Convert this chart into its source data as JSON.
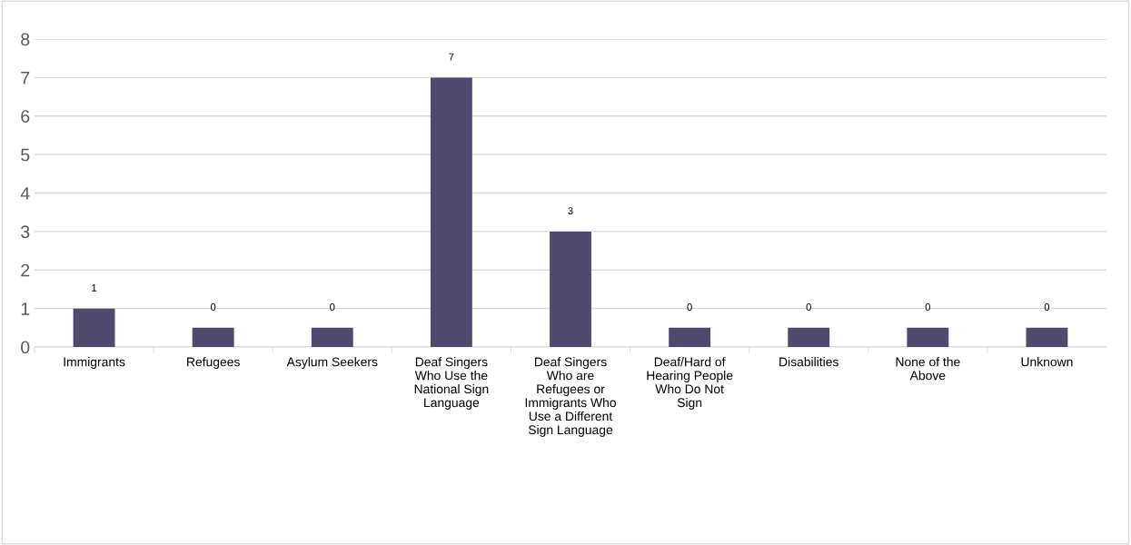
{
  "chart_data": {
    "type": "bar",
    "categories": [
      "Immigrants",
      "Refugees",
      "Asylum Seekers",
      "Deaf Singers\nWho Use the\nNational Sign\nLanguage",
      "Deaf Singers\nWho are\nRefugees or\nImmigrants Who\nUse a Different\nSign Language",
      "Deaf/Hard of\nHearing People\nWho Do Not\nSign",
      "Disabilities",
      "None of the\nAbove",
      "Unknown"
    ],
    "values": [
      1,
      0.5,
      0.5,
      7,
      3,
      0.5,
      0.5,
      0.5,
      0.5
    ],
    "value_labels": [
      "1",
      "0",
      "0",
      "7",
      "3",
      "0",
      "0",
      "0",
      "0"
    ],
    "color": "#4f4a6e",
    "ylim": [
      0,
      8
    ],
    "yticks": [
      0,
      1,
      2,
      3,
      4,
      5,
      6,
      7,
      8
    ],
    "grid": "y",
    "legend": false
  }
}
